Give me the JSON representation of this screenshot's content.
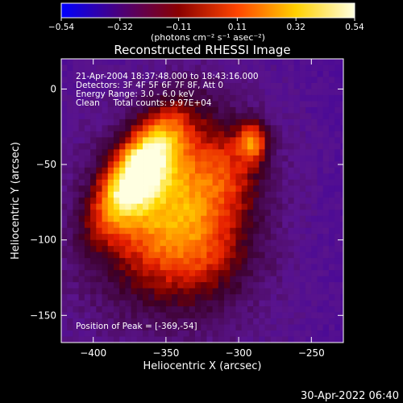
{
  "chart_data": {
    "type": "heatmap",
    "title": "Reconstructed RHESSI Image",
    "xlabel": "Heliocentric X (arcsec)",
    "ylabel": "Heliocentric Y (arcsec)",
    "xlim": [
      -422,
      -228
    ],
    "ylim": [
      -168,
      20
    ],
    "x_ticks": [
      -400,
      -350,
      -300,
      -250
    ],
    "y_ticks": [
      0,
      -50,
      -100,
      -150
    ],
    "x_tick_labels": [
      "−400",
      "−350",
      "−300",
      "−250"
    ],
    "y_tick_labels": [
      "0",
      "−50",
      "−100",
      "−150"
    ],
    "colorbar": {
      "min": -0.54,
      "max": 0.54,
      "tick_labels": [
        "−0.54",
        "−0.32",
        "−0.11",
        "0.11",
        "0.32",
        "0.54"
      ],
      "unit_label": "(photons cm⁻² s⁻¹ asec⁻²)",
      "colors": [
        "#0000ff",
        "#4b007a",
        "#8a0000",
        "#ff4500",
        "#ffd000",
        "#ffffe0"
      ]
    },
    "annotations": [
      "21-Apr-2004 18:37:48.000 to 18:43:16.000",
      "Detectors: 3F 4F 5F 6F 7F 8F, Att 0",
      "Energy Range: 3.0 - 6.0 keV",
      "Clean     Total counts: 9.97E+04"
    ],
    "peak_label": "Position of Peak = [-369,-54]",
    "sources": [
      {
        "x": -369,
        "y": -54,
        "sx": 12,
        "sy": 30,
        "rot": -35,
        "amp": 0.54
      },
      {
        "x": -352,
        "y": -70,
        "sx": 28,
        "sy": 40,
        "rot": -30,
        "amp": 0.3
      },
      {
        "x": -338,
        "y": -85,
        "sx": 35,
        "sy": 45,
        "rot": -20,
        "amp": 0.22
      },
      {
        "x": -325,
        "y": -110,
        "sx": 25,
        "sy": 25,
        "rot": 0,
        "amp": 0.16
      },
      {
        "x": -290,
        "y": -35,
        "sx": 7,
        "sy": 9,
        "rot": 0,
        "amp": 0.36
      },
      {
        "x": -305,
        "y": -55,
        "sx": 14,
        "sy": 18,
        "rot": 0,
        "amp": 0.14
      }
    ]
  },
  "footer": {
    "timestamp": "30-Apr-2022 06:40"
  },
  "colors": {
    "background": "#000000",
    "text": "#ffffff"
  }
}
